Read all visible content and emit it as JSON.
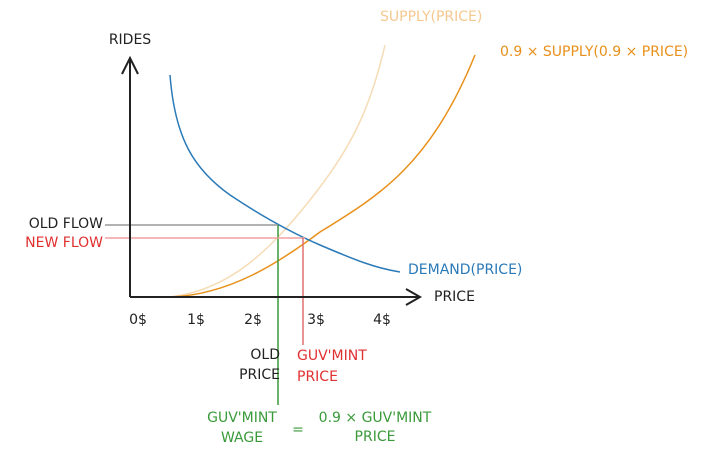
{
  "axes": {
    "y_label": "RIDES",
    "x_label": "PRICE",
    "x_ticks": [
      "0$",
      "1$",
      "2$",
      "3$",
      "4$"
    ]
  },
  "curves": {
    "supply": "SUPPLY(PRICE)",
    "taxed_supply": "0.9 × SUPPLY(0.9 × PRICE)",
    "demand": "DEMAND(PRICE)"
  },
  "flows": {
    "old": "OLD FLOW",
    "new": "NEW FLOW"
  },
  "prices": {
    "old": [
      "OLD",
      "PRICE"
    ],
    "govt": [
      "GUV'MINT",
      "PRICE"
    ]
  },
  "equation": {
    "left": [
      "GUV'MINT",
      "WAGE"
    ],
    "op": "=",
    "right": [
      "0.9 × GUV'MINT",
      "PRICE"
    ]
  }
}
